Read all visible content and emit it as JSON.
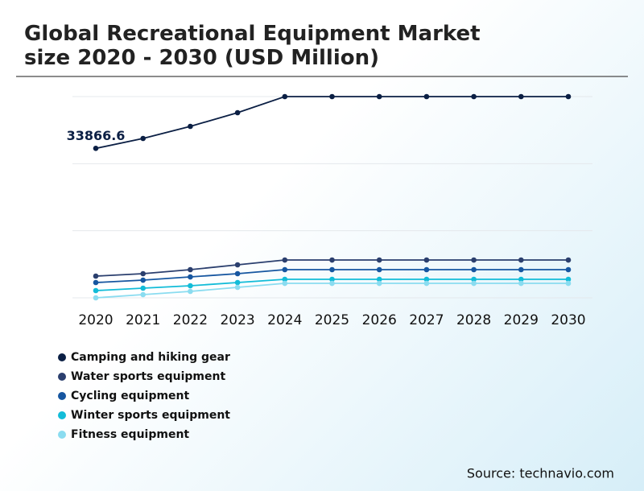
{
  "chart_data": {
    "type": "line",
    "title": "Global Recreational Equipment Market size 2020 - 2030 (USD Million)",
    "categories": [
      "2020",
      "2021",
      "2022",
      "2023",
      "2024",
      "2025",
      "2026",
      "2027",
      "2028",
      "2029",
      "2030"
    ],
    "series": [
      {
        "name": "Camping and hiking gear",
        "color": "#0b1f44",
        "values": [
          33866.6,
          36115,
          38850,
          41950,
          45600,
          45600,
          45600,
          45600,
          45600,
          45600,
          45600
        ]
      },
      {
        "name": "Water sports equipment",
        "color": "#2b3f6e",
        "values": [
          4925,
          5470,
          6385,
          7480,
          8570,
          8570,
          8570,
          8570,
          8570,
          8570,
          8570
        ]
      },
      {
        "name": "Cycling equipment",
        "color": "#1656a0",
        "values": [
          3465,
          4010,
          4740,
          5470,
          6385,
          6385,
          6385,
          6385,
          6385,
          6385,
          6385
        ]
      },
      {
        "name": "Winter sports equipment",
        "color": "#12bcd8",
        "values": [
          1640,
          2190,
          2735,
          3465,
          4195,
          4195,
          4195,
          4195,
          4195,
          4195,
          4195
        ]
      },
      {
        "name": "Fitness equipment",
        "color": "#8adcf0",
        "values": [
          0,
          730,
          1460,
          2370,
          3280,
          3280,
          3280,
          3280,
          3280,
          3280,
          3280
        ]
      }
    ],
    "ylim": [
      0,
      45600
    ],
    "yticks": [
      0,
      15200,
      30400,
      45600
    ],
    "grid": true,
    "source": "Source: technavio.com"
  }
}
